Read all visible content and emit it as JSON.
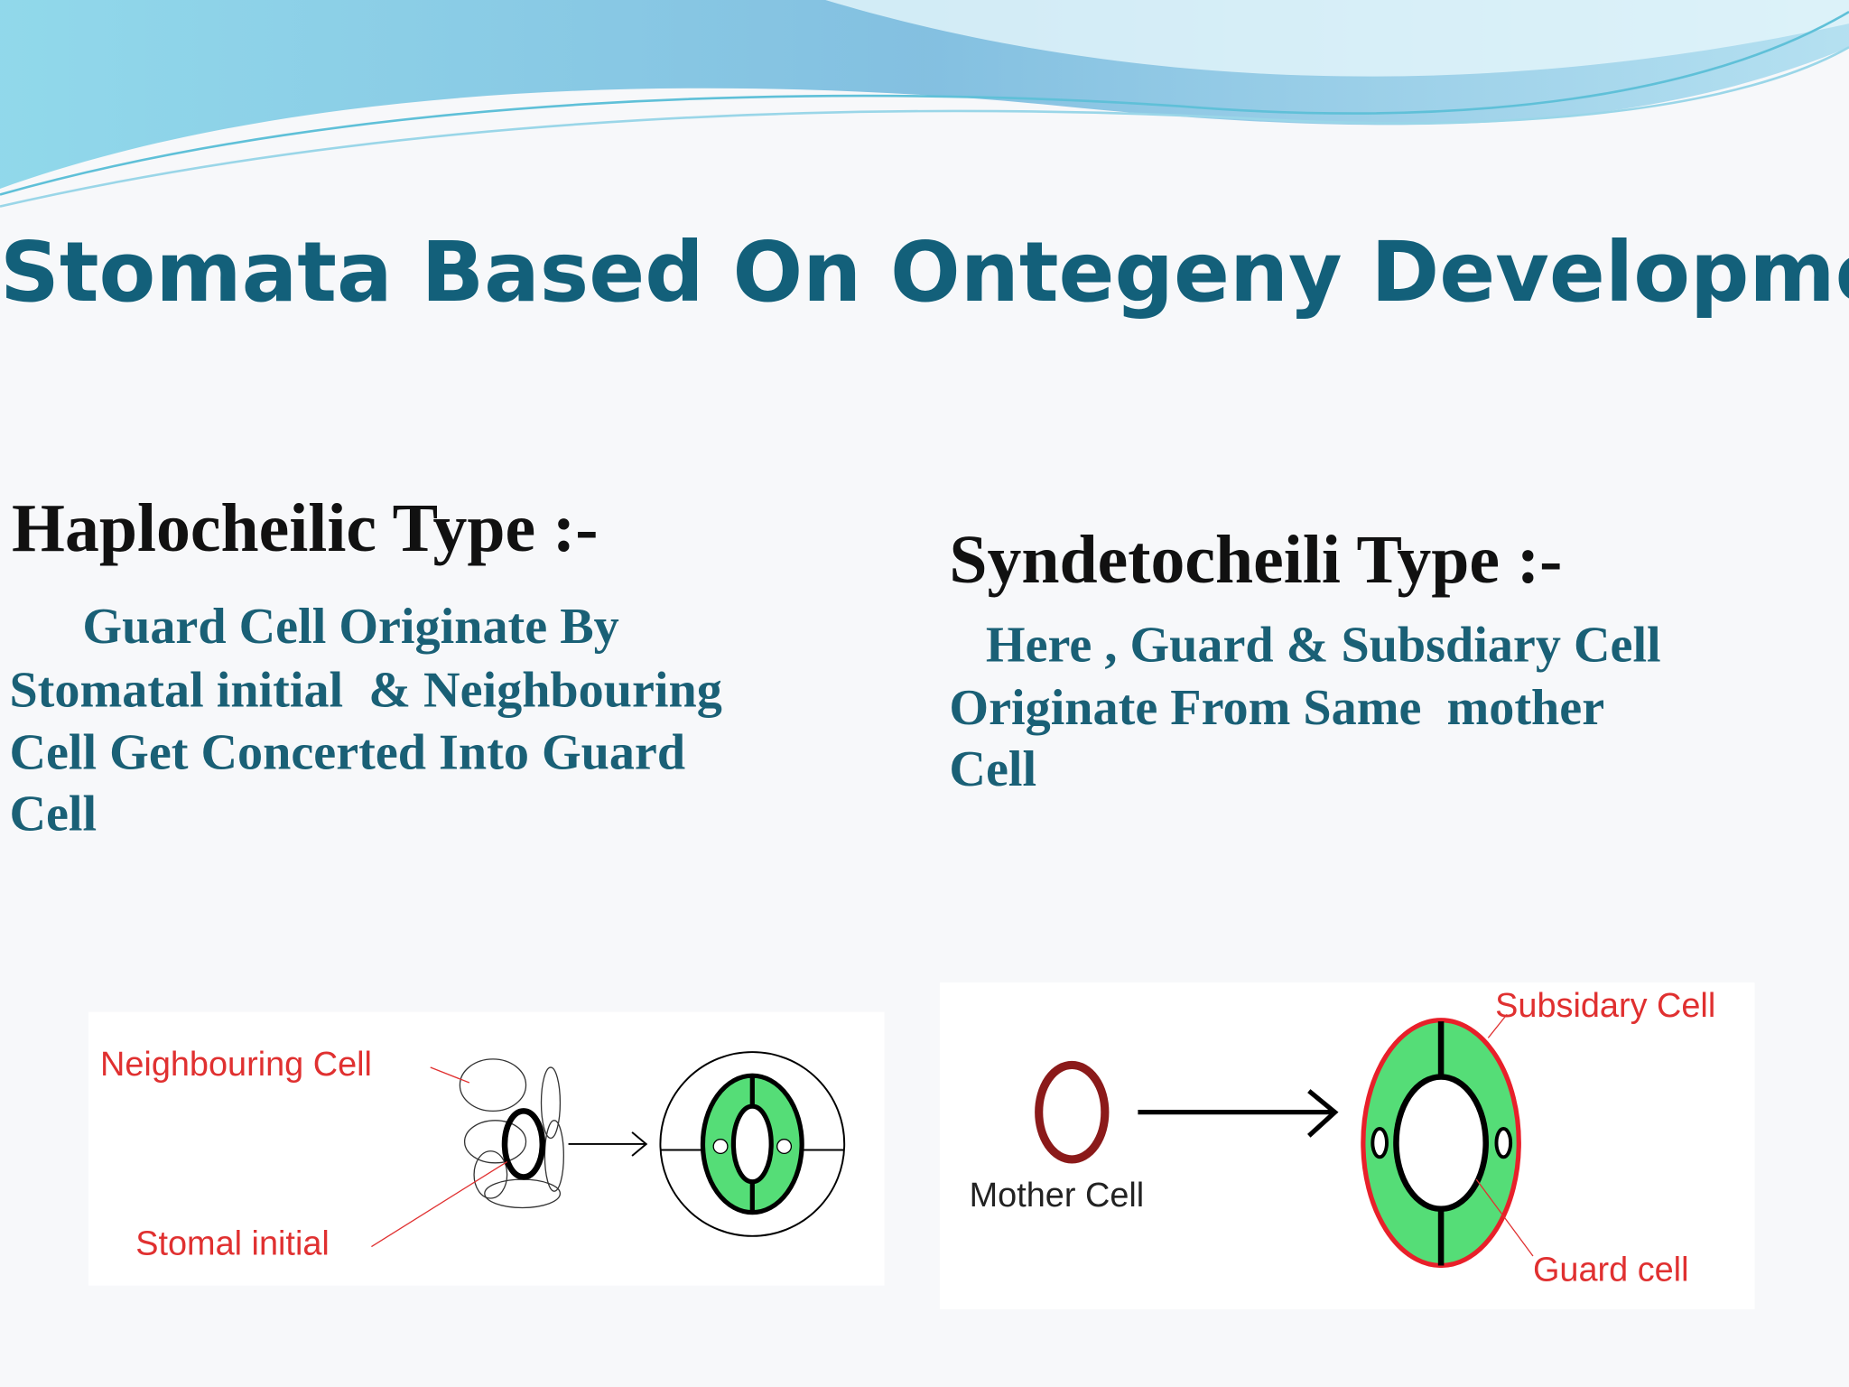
{
  "title": "Stomata Based On Ontegeny Development",
  "sections": [
    {
      "heading": "Haplocheilic Type :-",
      "body": [
        "Guard Cell Originate By",
        "Stomatal initial  & Neighbouring",
        "Cell Get Concerted Into Guard",
        "Cell"
      ],
      "diagram": {
        "labels": [
          "Neighbouring Cell",
          "Stomal initial"
        ]
      }
    },
    {
      "heading": "Syndetocheili Type :-",
      "body": [
        "Here , Guard & Subsdiary Cell",
        "Originate From Same  mother",
        "Cell"
      ],
      "diagram": {
        "labels": [
          "Mother Cell",
          "Subsidary Cell",
          "Guard cell"
        ]
      }
    }
  ]
}
